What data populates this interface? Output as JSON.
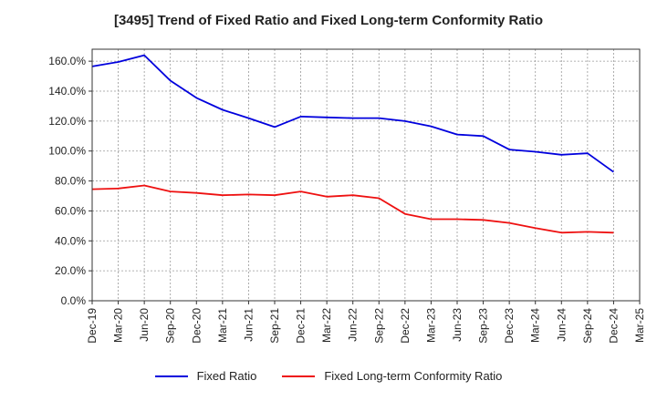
{
  "chart_data": {
    "type": "line",
    "title": "[3495]  Trend of Fixed Ratio and Fixed Long-term Conformity Ratio",
    "xlabel": "",
    "ylabel": "",
    "x": [
      "Dec-19",
      "Mar-20",
      "Jun-20",
      "Sep-20",
      "Dec-20",
      "Mar-21",
      "Jun-21",
      "Sep-21",
      "Dec-21",
      "Mar-22",
      "Jun-22",
      "Sep-22",
      "Dec-22",
      "Mar-23",
      "Jun-23",
      "Sep-23",
      "Dec-23",
      "Mar-24",
      "Jun-24",
      "Sep-24",
      "Dec-24",
      "Mar-25"
    ],
    "ylim": [
      0,
      168
    ],
    "yticks": [
      0,
      20,
      40,
      60,
      80,
      100,
      120,
      140,
      160
    ],
    "ytick_labels": [
      "0.0%",
      "20.0%",
      "40.0%",
      "60.0%",
      "80.0%",
      "100.0%",
      "120.0%",
      "140.0%",
      "160.0%"
    ],
    "grid": true,
    "legend_position": "bottom",
    "series": [
      {
        "name": "Fixed Ratio",
        "color": "#0000dd",
        "values": [
          156.5,
          159.5,
          164.0,
          147.0,
          135.5,
          127.5,
          122.0,
          116.0,
          123.0,
          122.5,
          122.0,
          122.0,
          120.0,
          116.5,
          111.0,
          110.0,
          101.0,
          99.5,
          97.5,
          98.5,
          86.0,
          null
        ]
      },
      {
        "name": "Fixed Long-term Conformity Ratio",
        "color": "#ee1111",
        "values": [
          74.5,
          75.0,
          77.0,
          73.0,
          72.0,
          70.5,
          71.0,
          70.5,
          73.0,
          69.5,
          70.5,
          68.5,
          58.0,
          54.5,
          54.5,
          54.0,
          52.0,
          48.5,
          45.5,
          46.0,
          45.5,
          null
        ]
      }
    ]
  }
}
